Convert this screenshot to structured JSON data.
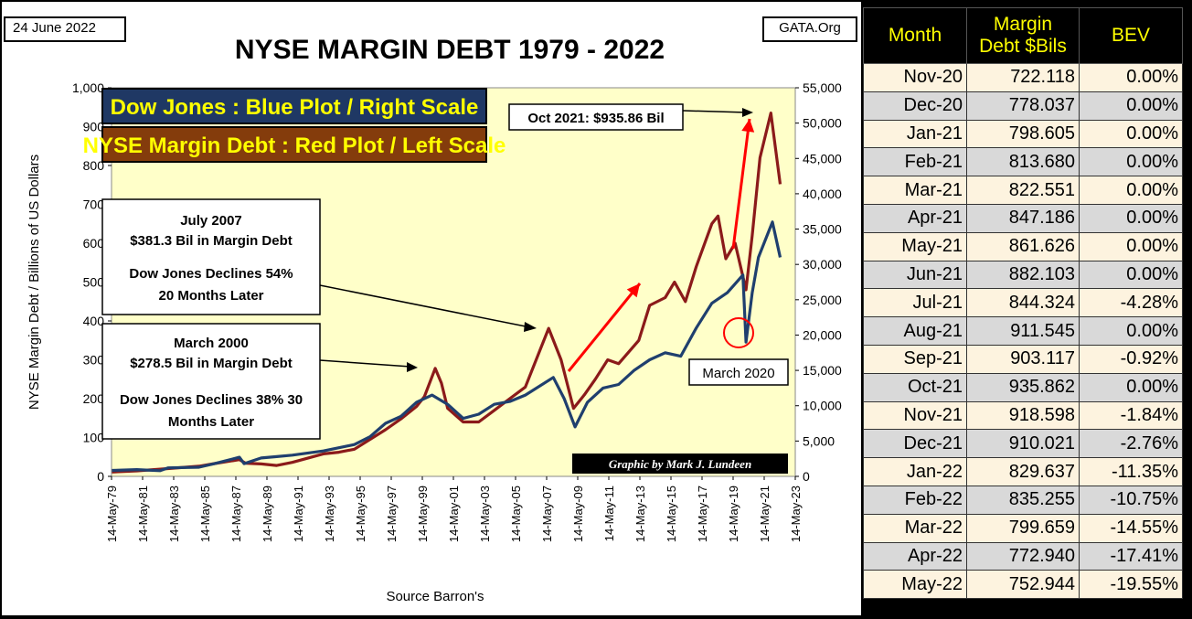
{
  "header": {
    "date": "24 June 2022",
    "source_site": "GATA.Org",
    "title": "NYSE MARGIN DEBT 1979 - 2022"
  },
  "legend": {
    "dow_label": "Dow Jones : Blue Plot / Right Scale",
    "margin_label": "NYSE Margin Debt : Red Plot / Left Scale"
  },
  "annotations": {
    "peak": "Oct 2021: $935.86  Bil",
    "july2007": [
      "July 2007",
      "$381.3  Bil in Margin Debt",
      "Dow Jones Declines 54%",
      "20 Months Later"
    ],
    "march2000": [
      "March  2000",
      "$278.5  Bil in Margin Debt",
      "Dow Jones Declines 38% 30",
      "Months Later"
    ],
    "march2020": "March  2020",
    "credit": "Graphic by Mark J. Lundeen"
  },
  "colors": {
    "plot_bg": "#ffffc9",
    "dow_line": "#1f3f6e",
    "margin_line": "#8b1a1a",
    "arrow_red": "#ff0000",
    "legend_dow_bg": "#1f3864",
    "legend_dow_text": "#ffff00",
    "legend_margin_bg": "#843c0c",
    "legend_margin_text": "#ffff00",
    "table_header_text": "#ffff00"
  },
  "chart_data": {
    "type": "line",
    "title": "NYSE MARGIN DEBT 1979 - 2022",
    "ylabel": "NYSE Margin Debt  /  Billions of US Dollars",
    "xlabel": "Source Barron's",
    "ylim": [
      0,
      1000
    ],
    "y2lim": [
      0,
      55000
    ],
    "yticks": [
      "0",
      "100",
      "200",
      "300",
      "400",
      "500",
      "600",
      "700",
      "800",
      "900",
      "1,000"
    ],
    "y2ticks": [
      "0",
      "5,000",
      "10,000",
      "15,000",
      "20,000",
      "25,000",
      "30,000",
      "35,000",
      "40,000",
      "45,000",
      "50,000",
      "55,000"
    ],
    "xticks": [
      "14-May-79",
      "14-May-81",
      "14-May-83",
      "14-May-85",
      "14-May-87",
      "14-May-89",
      "14-May-91",
      "14-May-93",
      "14-May-95",
      "14-May-97",
      "14-May-99",
      "14-May-01",
      "14-May-03",
      "14-May-05",
      "14-May-07",
      "14-May-09",
      "14-May-11",
      "14-May-13",
      "14-May-15",
      "14-May-17",
      "14-May-19",
      "14-May-21",
      "14-May-23"
    ],
    "xlim": [
      1979.37,
      2023.37
    ],
    "series": [
      {
        "name": "NYSE Margin Debt",
        "axis": "left",
        "points": [
          [
            1979.4,
            11
          ],
          [
            1981,
            14
          ],
          [
            1983,
            20
          ],
          [
            1985,
            26
          ],
          [
            1986,
            33
          ],
          [
            1987.6,
            43
          ],
          [
            1988,
            34
          ],
          [
            1989,
            32
          ],
          [
            1990,
            28
          ],
          [
            1991,
            36
          ],
          [
            1993,
            58
          ],
          [
            1994,
            62
          ],
          [
            1995,
            70
          ],
          [
            1996,
            95
          ],
          [
            1997,
            120
          ],
          [
            1998,
            148
          ],
          [
            1999,
            180
          ],
          [
            1999.5,
            205
          ],
          [
            2000.2,
            278
          ],
          [
            2000.6,
            240
          ],
          [
            2001,
            175
          ],
          [
            2002,
            140
          ],
          [
            2003,
            140
          ],
          [
            2004,
            170
          ],
          [
            2005,
            200
          ],
          [
            2006,
            230
          ],
          [
            2007.5,
            381
          ],
          [
            2008.3,
            300
          ],
          [
            2009.1,
            175
          ],
          [
            2009.8,
            210
          ],
          [
            2010.5,
            250
          ],
          [
            2011.3,
            300
          ],
          [
            2012,
            290
          ],
          [
            2013.3,
            350
          ],
          [
            2014,
            440
          ],
          [
            2015,
            460
          ],
          [
            2015.6,
            500
          ],
          [
            2016.3,
            450
          ],
          [
            2017,
            540
          ],
          [
            2018,
            650
          ],
          [
            2018.4,
            670
          ],
          [
            2018.9,
            560
          ],
          [
            2019.5,
            600
          ],
          [
            2020.2,
            480
          ],
          [
            2020.6,
            620
          ],
          [
            2021.1,
            820
          ],
          [
            2021.8,
            935
          ],
          [
            2022.4,
            752
          ]
        ]
      },
      {
        "name": "Dow Jones",
        "axis": "right",
        "points": [
          [
            1979.4,
            840
          ],
          [
            1981,
            960
          ],
          [
            1982.5,
            800
          ],
          [
            1983,
            1200
          ],
          [
            1985,
            1300
          ],
          [
            1986,
            1800
          ],
          [
            1987.6,
            2700
          ],
          [
            1987.9,
            1800
          ],
          [
            1989,
            2600
          ],
          [
            1990,
            2800
          ],
          [
            1991,
            3000
          ],
          [
            1993,
            3600
          ],
          [
            1995,
            4500
          ],
          [
            1996,
            5600
          ],
          [
            1997,
            7500
          ],
          [
            1998,
            8500
          ],
          [
            1999,
            10500
          ],
          [
            2000,
            11500
          ],
          [
            2001,
            10200
          ],
          [
            2002,
            8200
          ],
          [
            2003,
            8800
          ],
          [
            2004,
            10200
          ],
          [
            2005,
            10600
          ],
          [
            2006,
            11500
          ],
          [
            2007.8,
            14000
          ],
          [
            2008.5,
            11000
          ],
          [
            2009.2,
            7000
          ],
          [
            2010,
            10500
          ],
          [
            2011,
            12500
          ],
          [
            2012,
            13000
          ],
          [
            2013,
            15000
          ],
          [
            2014,
            16500
          ],
          [
            2015,
            17500
          ],
          [
            2016,
            17000
          ],
          [
            2017,
            21000
          ],
          [
            2018,
            24500
          ],
          [
            2019,
            26000
          ],
          [
            2020,
            28500
          ],
          [
            2020.2,
            19000
          ],
          [
            2020.6,
            26000
          ],
          [
            2021,
            31000
          ],
          [
            2021.9,
            36000
          ],
          [
            2022.4,
            31000
          ]
        ]
      }
    ]
  },
  "table": {
    "headers": [
      "Month",
      "Margin Debt $Bils",
      "BEV"
    ],
    "header_lines": [
      [
        "Month"
      ],
      [
        "Margin",
        "Debt $Bils"
      ],
      [
        "BEV"
      ]
    ],
    "rows": [
      [
        "Nov-20",
        "722.118",
        "0.00%"
      ],
      [
        "Dec-20",
        "778.037",
        "0.00%"
      ],
      [
        "Jan-21",
        "798.605",
        "0.00%"
      ],
      [
        "Feb-21",
        "813.680",
        "0.00%"
      ],
      [
        "Mar-21",
        "822.551",
        "0.00%"
      ],
      [
        "Apr-21",
        "847.186",
        "0.00%"
      ],
      [
        "May-21",
        "861.626",
        "0.00%"
      ],
      [
        "Jun-21",
        "882.103",
        "0.00%"
      ],
      [
        "Jul-21",
        "844.324",
        "-4.28%"
      ],
      [
        "Aug-21",
        "911.545",
        "0.00%"
      ],
      [
        "Sep-21",
        "903.117",
        "-0.92%"
      ],
      [
        "Oct-21",
        "935.862",
        "0.00%"
      ],
      [
        "Nov-21",
        "918.598",
        "-1.84%"
      ],
      [
        "Dec-21",
        "910.021",
        "-2.76%"
      ],
      [
        "Jan-22",
        "829.637",
        "-11.35%"
      ],
      [
        "Feb-22",
        "835.255",
        "-10.75%"
      ],
      [
        "Mar-22",
        "799.659",
        "-14.55%"
      ],
      [
        "Apr-22",
        "772.940",
        "-17.41%"
      ],
      [
        "May-22",
        "752.944",
        "-19.55%"
      ]
    ]
  }
}
